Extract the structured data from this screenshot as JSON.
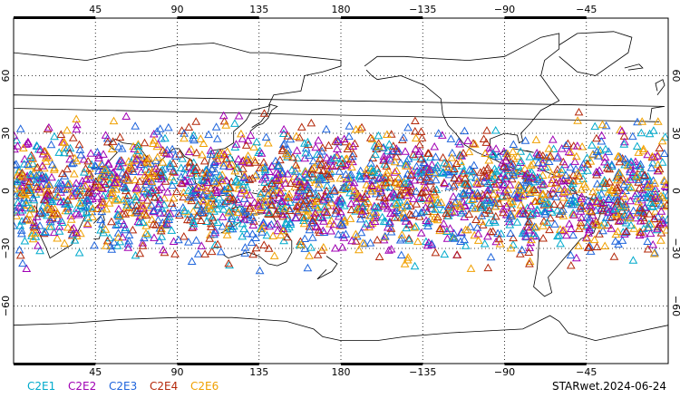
{
  "chart_data": {
    "type": "scatter",
    "projection": "cylindrical equidistant, centered on 180",
    "x_ticks": [
      "45",
      "90",
      "135",
      "180",
      "−135",
      "−90",
      "−45"
    ],
    "y_ticks": [
      "60",
      "30",
      "0",
      "−30",
      "−60"
    ],
    "xlim": [
      0,
      360
    ],
    "ylim": [
      -90,
      90
    ],
    "grid": "dotted at 45° longitude and 30° latitude",
    "marker": "open triangle",
    "legend_placement": "bottom-left",
    "latitude_coverage": [
      -45,
      45
    ],
    "series": [
      {
        "name": "C2E1",
        "color": "#00aacc"
      },
      {
        "name": "C2E2",
        "color": "#a000b4"
      },
      {
        "name": "C2E3",
        "color": "#1e64dc"
      },
      {
        "name": "C2E4",
        "color": "#b4280a"
      },
      {
        "name": "C2E6",
        "color": "#f0a000"
      }
    ],
    "caption": "STARwet.2024-06-24"
  },
  "colors": {
    "coastline": "#000000",
    "grid": "#000000",
    "background": "#ffffff"
  }
}
